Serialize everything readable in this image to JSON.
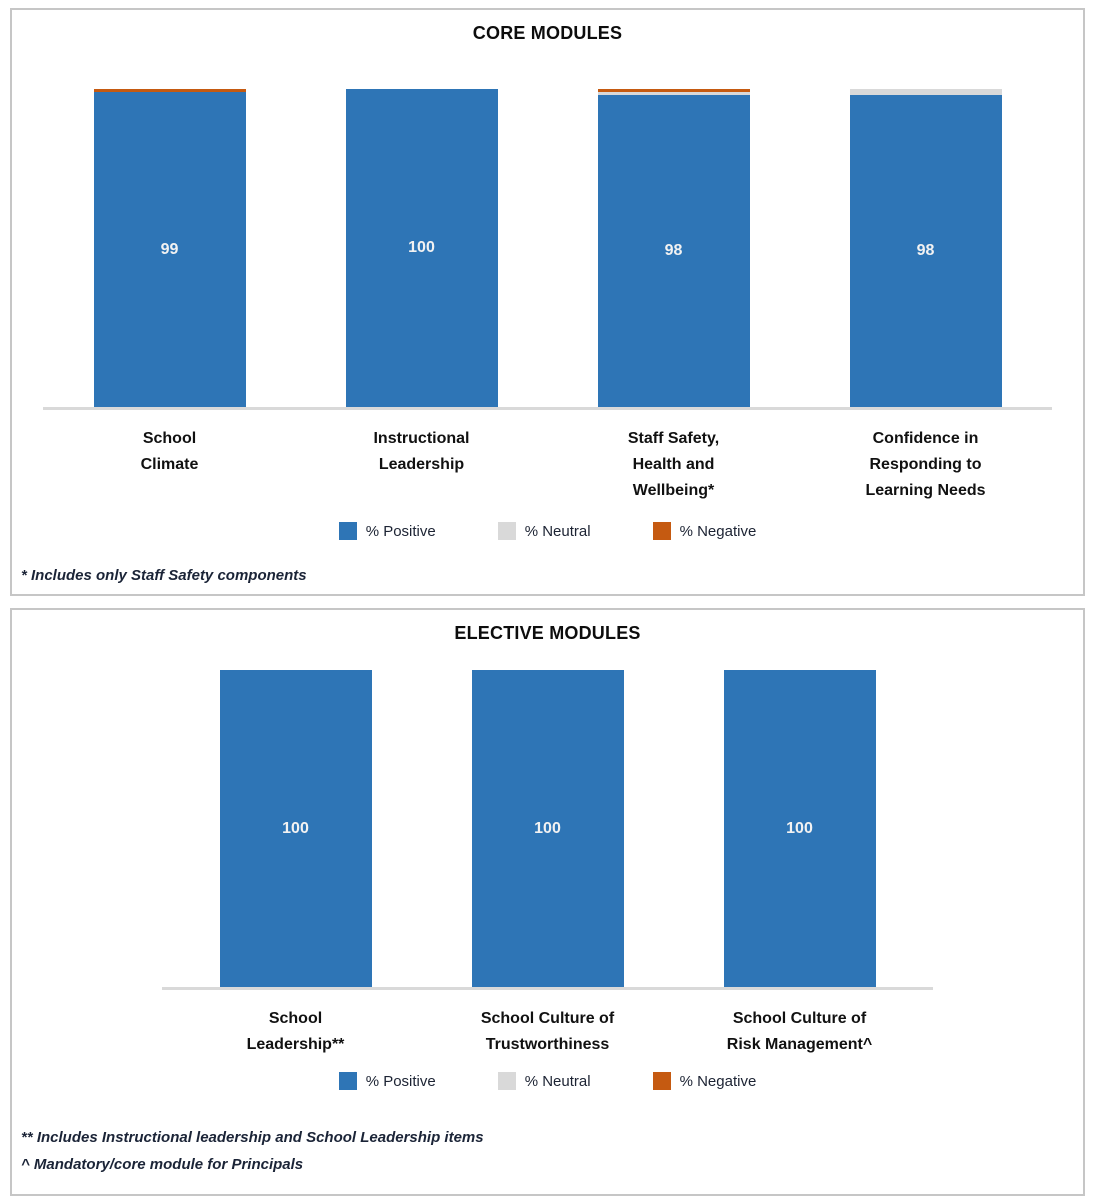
{
  "colors": {
    "positive": "#2E75B6",
    "neutral": "#D9D9D9",
    "negative": "#C55A11",
    "axis_line": "#D9D9D9",
    "panel_border": "#C6C6C6",
    "value_label": "#F2F2F2"
  },
  "legend": {
    "positive": "% Positive",
    "neutral": "% Neutral",
    "negative": "% Negative"
  },
  "chart_data": [
    {
      "type": "bar",
      "stacked": true,
      "title": "CORE MODULES",
      "categories": [
        "School\nClimate",
        "Instructional\nLeadership",
        "Staff Safety,\nHealth and\nWellbeing*",
        "Confidence in\nResponding to\nLearning Needs"
      ],
      "series": [
        {
          "name": "% Positive",
          "values": [
            99,
            100,
            98,
            98
          ]
        },
        {
          "name": "% Neutral",
          "values": [
            0,
            0,
            1,
            2
          ]
        },
        {
          "name": "% Negative",
          "values": [
            1,
            0,
            1,
            0
          ]
        }
      ],
      "value_labels": [
        "99",
        "100",
        "98",
        "98"
      ],
      "ylim": [
        0,
        100
      ],
      "grid": false,
      "legend_position": "bottom",
      "footnotes": [
        "* Includes only Staff Safety components"
      ]
    },
    {
      "type": "bar",
      "stacked": true,
      "title": "ELECTIVE MODULES",
      "categories": [
        "School\nLeadership**",
        "School Culture of\nTrustworthiness",
        "School Culture of\nRisk Management^"
      ],
      "series": [
        {
          "name": "% Positive",
          "values": [
            100,
            100,
            100
          ]
        },
        {
          "name": "% Neutral",
          "values": [
            0,
            0,
            0
          ]
        },
        {
          "name": "% Negative",
          "values": [
            0,
            0,
            0
          ]
        }
      ],
      "value_labels": [
        "100",
        "100",
        "100"
      ],
      "ylim": [
        0,
        100
      ],
      "grid": false,
      "legend_position": "bottom",
      "footnotes": [
        "** Includes Instructional leadership and School Leadership items",
        "^ Mandatory/core module for Principals"
      ]
    }
  ]
}
